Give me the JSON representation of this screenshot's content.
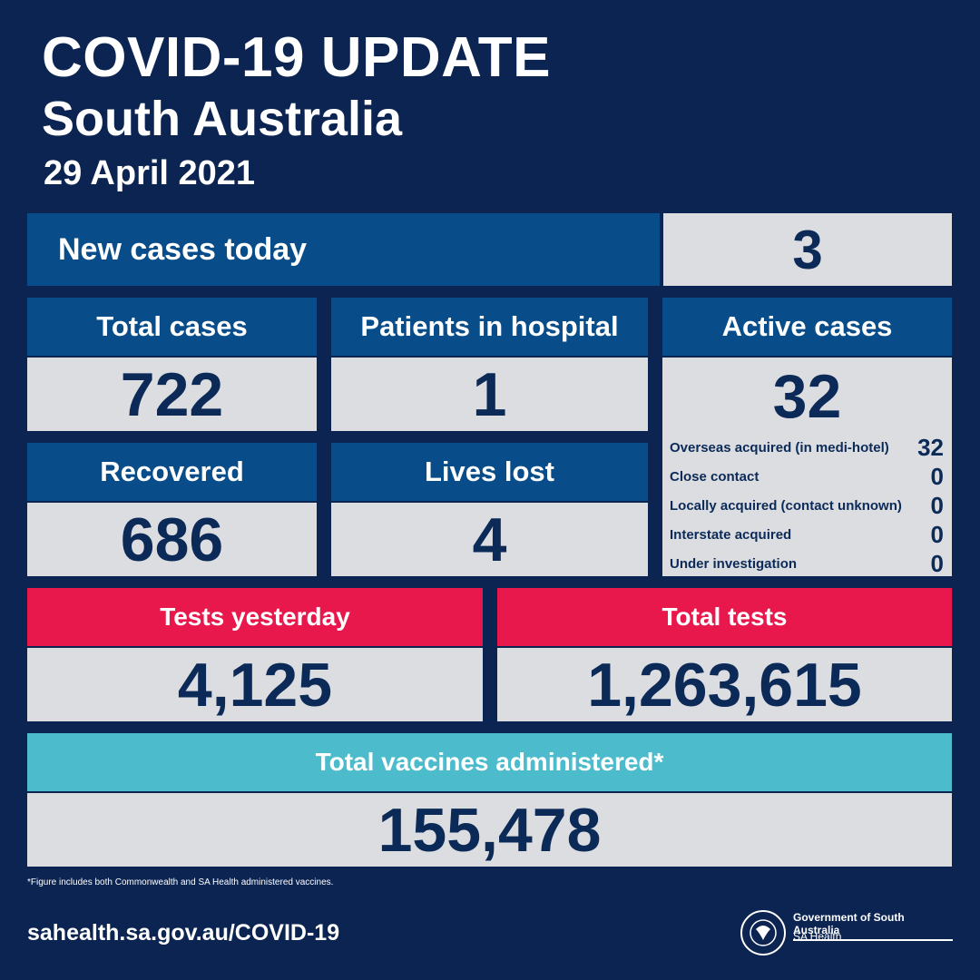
{
  "header": {
    "title": "COVID-19 UPDATE",
    "subtitle": "South Australia",
    "date": "29 April 2021"
  },
  "new_cases": {
    "label": "New cases today",
    "value": "3"
  },
  "total_cases": {
    "label": "Total cases",
    "value": "722"
  },
  "hospital": {
    "label": "Patients in hospital",
    "value": "1"
  },
  "active": {
    "label": "Active cases",
    "value": "32",
    "breakdown": [
      {
        "label": "Overseas acquired (in medi-hotel)",
        "value": "32"
      },
      {
        "label": "Close contact",
        "value": "0"
      },
      {
        "label": "Locally acquired (contact unknown)",
        "value": "0"
      },
      {
        "label": "Interstate acquired",
        "value": "0"
      },
      {
        "label": "Under investigation",
        "value": "0"
      }
    ]
  },
  "recovered": {
    "label": "Recovered",
    "value": "686"
  },
  "lives_lost": {
    "label": "Lives lost",
    "value": "4"
  },
  "tests_yesterday": {
    "label": "Tests yesterday",
    "value": "4,125"
  },
  "total_tests": {
    "label": "Total tests",
    "value": "1,263,615"
  },
  "vaccines": {
    "label": "Total vaccines administered*",
    "value": "155,478"
  },
  "footer": {
    "footnote": "*Figure includes both Commonwealth and SA Health administered vaccines.",
    "url": "sahealth.sa.gov.au/COVID-19",
    "gov": "Government of South Australia",
    "dept": "SA Health",
    "seal_text": "SOUTH AUSTRALIA"
  },
  "colors": {
    "background": "#0c2452",
    "header_blue": "#084d89",
    "value_grey": "#dcdde0",
    "red": "#e8184d",
    "teal": "#4cbccd",
    "number": "#0c2a57"
  }
}
